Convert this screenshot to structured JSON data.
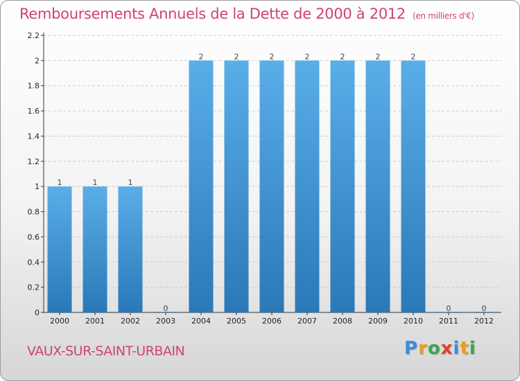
{
  "chart_data": {
    "type": "bar",
    "title": "Remboursements Annuels de la Dette de 2000 à 2012",
    "unit_label": "(en milliers d'€)",
    "categories": [
      "2000",
      "2001",
      "2002",
      "2003",
      "2004",
      "2005",
      "2006",
      "2007",
      "2008",
      "2009",
      "2010",
      "2011",
      "2012"
    ],
    "values": [
      1,
      1,
      1,
      0,
      2,
      2,
      2,
      2,
      2,
      2,
      2,
      0,
      0
    ],
    "data_labels": [
      "1",
      "1",
      "1",
      "0",
      "2",
      "2",
      "2",
      "2",
      "2",
      "2",
      "2",
      "0",
      "0"
    ],
    "ylim": [
      0,
      2.2
    ],
    "yticks": [
      0,
      0.2,
      0.4,
      0.6,
      0.8,
      1,
      1.2,
      1.4,
      1.6,
      1.8,
      2,
      2.2
    ],
    "ytick_labels": [
      "0",
      "0.2",
      "0.4",
      "0.6",
      "0.8",
      "1",
      "1.2",
      "1.4",
      "1.6",
      "1.8",
      "2",
      "2.2"
    ],
    "xlabel": "",
    "ylabel": "",
    "grid": true,
    "colors": {
      "bar_top": "#5aaee8",
      "bar_bottom": "#2a78b8",
      "grid": "#cccccc",
      "text": "#222222"
    }
  },
  "footer": {
    "commune": "VAUX-SUR-SAINT-URBAIN"
  },
  "logo": {
    "letters": [
      "P",
      "r",
      "o",
      "x",
      "i",
      "t",
      "i"
    ],
    "colors": [
      "#3a8fd8",
      "#e8a020",
      "#3aa848",
      "#e0402a",
      "#3a8fd8",
      "#e8a020",
      "#3aa848"
    ]
  },
  "theme": {
    "accent": "#d0407a"
  }
}
